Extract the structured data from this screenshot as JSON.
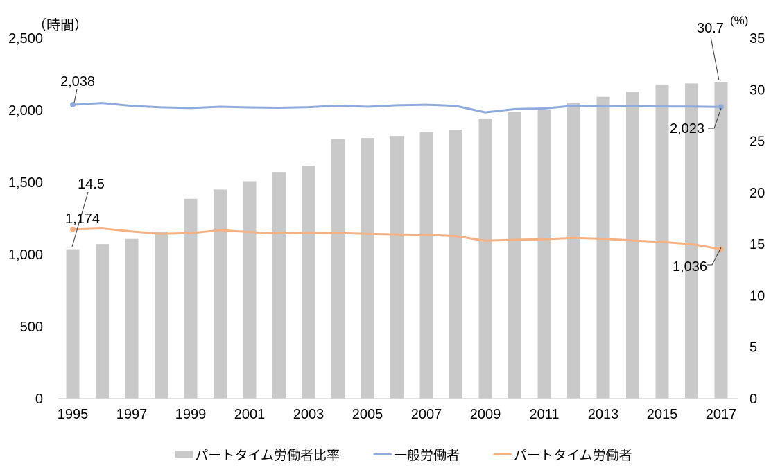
{
  "chart_data": {
    "type": "combo-bar-line",
    "title": "",
    "x": [
      1995,
      1996,
      1997,
      1998,
      1999,
      2000,
      2001,
      2002,
      2003,
      2004,
      2005,
      2006,
      2007,
      2008,
      2009,
      2010,
      2011,
      2012,
      2013,
      2014,
      2015,
      2016,
      2017
    ],
    "x_tick_labels": [
      "1995",
      "1997",
      "1999",
      "2001",
      "2003",
      "2005",
      "2007",
      "2009",
      "2011",
      "2013",
      "2015",
      "2017"
    ],
    "left_axis": {
      "label": "（時間）",
      "ticks": [
        "0",
        "500",
        "1,000",
        "1,500",
        "2,000",
        "2,500"
      ],
      "range": [
        0,
        2500
      ]
    },
    "right_axis": {
      "label": "(%)",
      "ticks": [
        "0",
        "5",
        "10",
        "15",
        "20",
        "25",
        "30",
        "35"
      ],
      "range": [
        0,
        35
      ]
    },
    "grid": false,
    "legend_position": "bottom",
    "series": [
      {
        "name": "パートタイム労働者比率",
        "type": "bar",
        "axis": "right",
        "color": "#c9c9c9",
        "values": [
          14.5,
          15.0,
          15.5,
          16.2,
          19.4,
          20.3,
          21.1,
          22.0,
          22.6,
          25.2,
          25.3,
          25.5,
          25.9,
          26.1,
          27.2,
          27.8,
          28.0,
          28.7,
          29.3,
          29.8,
          30.5,
          30.6,
          30.7
        ]
      },
      {
        "name": "一般労働者",
        "type": "line",
        "axis": "left",
        "color": "#8faadc",
        "values": [
          2038,
          2050,
          2030,
          2020,
          2015,
          2024,
          2019,
          2017,
          2021,
          2032,
          2024,
          2034,
          2038,
          2030,
          1985,
          2008,
          2012,
          2031,
          2026,
          2027,
          2026,
          2025,
          2023
        ]
      },
      {
        "name": "パートタイム労働者",
        "type": "line",
        "axis": "left",
        "color": "#f4b183",
        "values": [
          1174,
          1180,
          1159,
          1143,
          1148,
          1168,
          1155,
          1146,
          1150,
          1148,
          1143,
          1139,
          1136,
          1127,
          1095,
          1101,
          1105,
          1114,
          1108,
          1096,
          1086,
          1071,
          1036
        ]
      }
    ],
    "annotations": [
      {
        "id": "a2038",
        "text": "2,038",
        "series": "一般労働者",
        "year": 1995
      },
      {
        "id": "a14_5",
        "text": "14.5",
        "series": "パートタイム労働者比率",
        "year": 1995
      },
      {
        "id": "a1174",
        "text": "1,174",
        "series": "パートタイム労働者",
        "year": 1995
      },
      {
        "id": "a30_7",
        "text": "30.7",
        "series": "パートタイム労働者比率",
        "year": 2017
      },
      {
        "id": "a2023",
        "text": "2,023",
        "series": "一般労働者",
        "year": 2017
      },
      {
        "id": "a1036",
        "text": "1,036",
        "series": "パートタイム労働者",
        "year": 2017
      }
    ],
    "baseline_color": "#d9d9d9",
    "annotation_line_color": "#333333"
  }
}
